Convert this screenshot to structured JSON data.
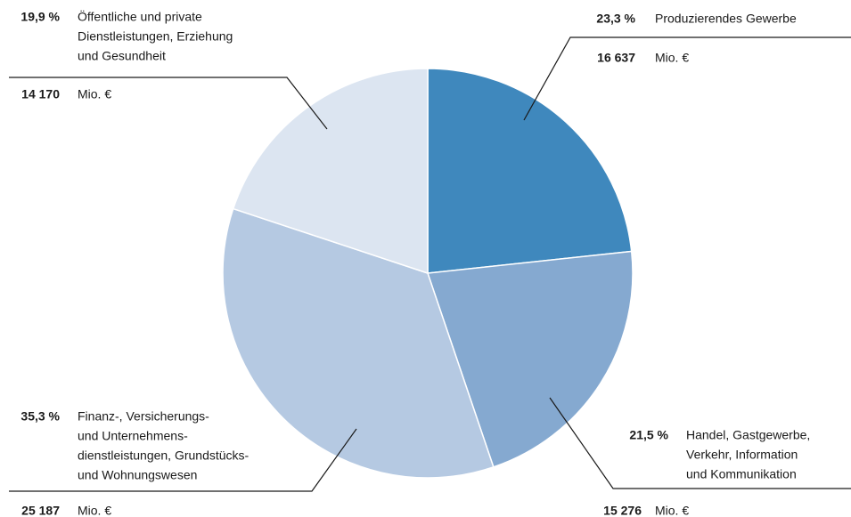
{
  "chart_data": {
    "type": "pie",
    "categories": [
      [
        "Produzierendes Gewerbe"
      ],
      [
        "Handel, Gastgewerbe,",
        "Verkehr, Information",
        "und Kommunikation"
      ],
      [
        "Finanz-, Versicherungs-",
        "und Unternehmens-",
        "dienstleistungen, Grundstücks-",
        "und Wohnungswesen"
      ],
      [
        "Öffentliche und private",
        "Dienstleistungen, Erziehung",
        "und Gesundheit"
      ]
    ],
    "values": [
      23.3,
      21.5,
      35.3,
      19.9
    ],
    "value_labels": [
      "23,3 %",
      "21,5 %",
      "35,3 %",
      "19,9 %"
    ],
    "amounts": [
      16637,
      15276,
      25187,
      14170
    ],
    "amount_labels": [
      "16 637",
      "15 276",
      "25 187",
      "14 170"
    ],
    "unit": "Mio. €",
    "colors": [
      "#3f88bd",
      "#85a9d0",
      "#b5c9e2",
      "#dce5f1"
    ]
  }
}
